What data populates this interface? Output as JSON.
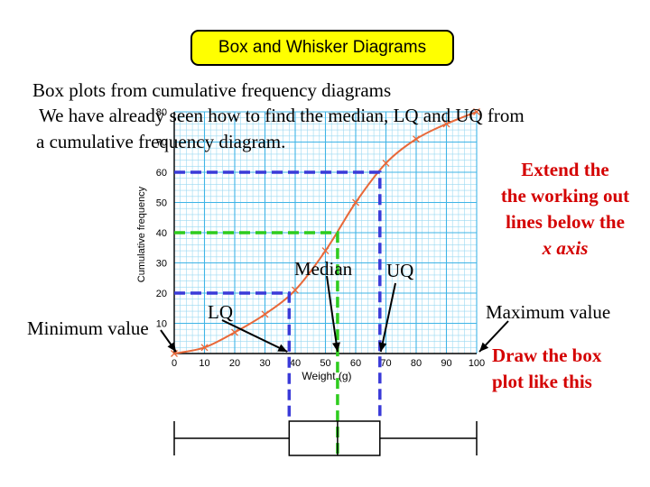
{
  "header": {
    "title": "Box and Whisker Diagrams"
  },
  "body_text": {
    "line1": "Box plots from cumulative frequency diagrams",
    "line2": "We have already seen how to find the median, LQ and UQ from",
    "line3": "a cumulative frequency diagram."
  },
  "annotations": {
    "extend": [
      "Extend the",
      "the working out",
      "lines below the",
      "x axis"
    ],
    "draw_box": [
      "Draw the box",
      "plot like this"
    ],
    "minimum": "Minimum value",
    "maximum": "Maximum value",
    "median": "Median",
    "lq": "LQ",
    "uq": "UQ"
  },
  "colors": {
    "curve": "#e8693a",
    "grid": "#9ad9f2",
    "lq_uq_lines": "#3a3ad8",
    "median_line": "#2ecc1e",
    "note_text": "#d40000",
    "title_bg": "#ffff00"
  },
  "chart_data": {
    "type": "line",
    "xlabel": "Weight (g)",
    "ylabel": "Cumulative frequency",
    "xlim": [
      0,
      100
    ],
    "ylim": [
      0,
      80
    ],
    "x_ticks": [
      0,
      10,
      20,
      30,
      40,
      50,
      60,
      70,
      80,
      90,
      100
    ],
    "y_ticks": [
      10,
      20,
      30,
      40,
      50,
      60,
      70,
      80
    ],
    "series": [
      {
        "x": [
          0,
          10,
          20,
          30,
          40,
          50,
          60,
          70,
          80,
          90,
          100
        ],
        "y": [
          0,
          2,
          7,
          13,
          21,
          34,
          50,
          63,
          71,
          76,
          80
        ]
      }
    ],
    "quartiles": {
      "minimum": 0,
      "lq": 38,
      "median": 54,
      "uq": 68,
      "maximum": 100
    },
    "quartile_levels": {
      "lq": 20,
      "median": 40,
      "uq": 60
    }
  }
}
